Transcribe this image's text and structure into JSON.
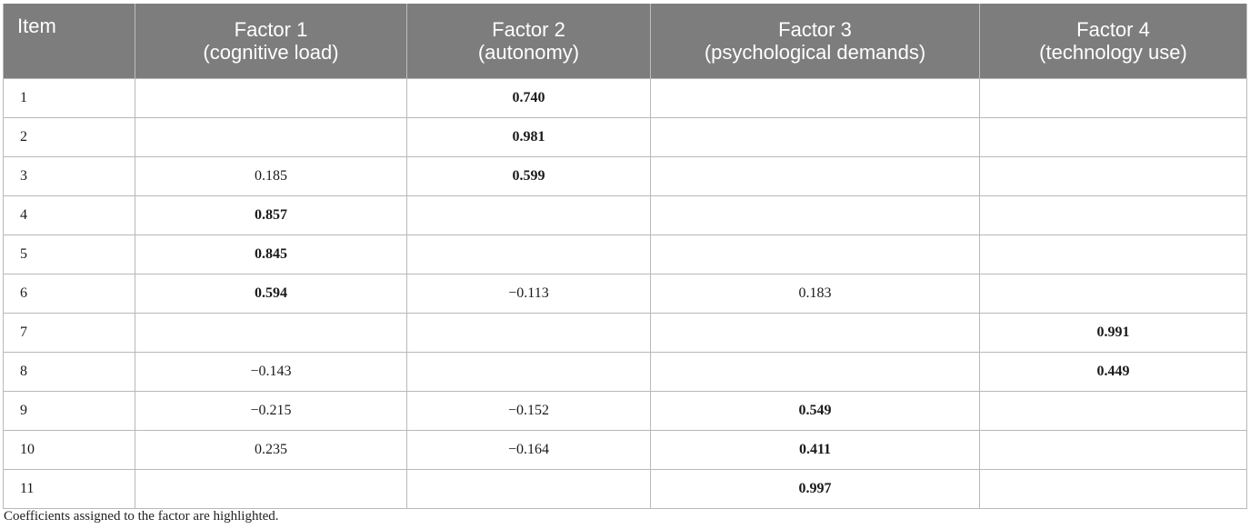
{
  "columns": [
    {
      "line1": "Item",
      "line2": ""
    },
    {
      "line1": "Factor 1",
      "line2": "(cognitive load)"
    },
    {
      "line1": "Factor 2",
      "line2": "(autonomy)"
    },
    {
      "line1": "Factor 3",
      "line2": "(psychological demands)"
    },
    {
      "line1": "Factor 4",
      "line2": "(technology use)"
    }
  ],
  "rows": [
    {
      "item": "1",
      "values": [
        {
          "v": "",
          "b": false
        },
        {
          "v": "0.740",
          "b": true
        },
        {
          "v": "",
          "b": false
        },
        {
          "v": "",
          "b": false
        }
      ]
    },
    {
      "item": "2",
      "values": [
        {
          "v": "",
          "b": false
        },
        {
          "v": "0.981",
          "b": true
        },
        {
          "v": "",
          "b": false
        },
        {
          "v": "",
          "b": false
        }
      ]
    },
    {
      "item": "3",
      "values": [
        {
          "v": "0.185",
          "b": false
        },
        {
          "v": "0.599",
          "b": true
        },
        {
          "v": "",
          "b": false
        },
        {
          "v": "",
          "b": false
        }
      ]
    },
    {
      "item": "4",
      "values": [
        {
          "v": "0.857",
          "b": true
        },
        {
          "v": "",
          "b": false
        },
        {
          "v": "",
          "b": false
        },
        {
          "v": "",
          "b": false
        }
      ]
    },
    {
      "item": "5",
      "values": [
        {
          "v": "0.845",
          "b": true
        },
        {
          "v": "",
          "b": false
        },
        {
          "v": "",
          "b": false
        },
        {
          "v": "",
          "b": false
        }
      ]
    },
    {
      "item": "6",
      "values": [
        {
          "v": "0.594",
          "b": true
        },
        {
          "v": "−0.113",
          "b": false
        },
        {
          "v": "0.183",
          "b": false
        },
        {
          "v": "",
          "b": false
        }
      ]
    },
    {
      "item": "7",
      "values": [
        {
          "v": "",
          "b": false
        },
        {
          "v": "",
          "b": false
        },
        {
          "v": "",
          "b": false
        },
        {
          "v": "0.991",
          "b": true
        }
      ]
    },
    {
      "item": "8",
      "values": [
        {
          "v": "−0.143",
          "b": false
        },
        {
          "v": "",
          "b": false
        },
        {
          "v": "",
          "b": false
        },
        {
          "v": "0.449",
          "b": true
        }
      ]
    },
    {
      "item": "9",
      "values": [
        {
          "v": "−0.215",
          "b": false
        },
        {
          "v": "−0.152",
          "b": false
        },
        {
          "v": "0.549",
          "b": true
        },
        {
          "v": "",
          "b": false
        }
      ]
    },
    {
      "item": "10",
      "values": [
        {
          "v": "0.235",
          "b": false
        },
        {
          "v": "−0.164",
          "b": false
        },
        {
          "v": "0.411",
          "b": true
        },
        {
          "v": "",
          "b": false
        }
      ]
    },
    {
      "item": "11",
      "values": [
        {
          "v": "",
          "b": false
        },
        {
          "v": "",
          "b": false
        },
        {
          "v": "0.997",
          "b": true
        },
        {
          "v": "",
          "b": false
        }
      ]
    }
  ],
  "footnote": "Coefficients assigned to the factor are highlighted."
}
